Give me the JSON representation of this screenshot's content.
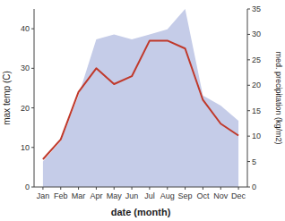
{
  "chart_data": {
    "type": "line",
    "categories": [
      "Jan",
      "Feb",
      "Mar",
      "Apr",
      "May",
      "Jun",
      "Jul",
      "Aug",
      "Sep",
      "Oct",
      "Nov",
      "Dec"
    ],
    "xlabel": "date (month)",
    "ylabel": "max temp (C)",
    "y2label": "med. precipitation (kg/m2)",
    "series": [
      {
        "type": "area",
        "axis": "y2",
        "color": "#c5cce8",
        "values": [
          5,
          9,
          18,
          29,
          30,
          29,
          30,
          31,
          35,
          18,
          16,
          13
        ]
      },
      {
        "type": "line",
        "color": "#c0392b",
        "values": [
          7,
          12,
          24,
          30,
          26,
          28,
          37,
          37,
          35,
          22,
          16,
          13
        ]
      }
    ],
    "ylim": [
      0,
      45
    ],
    "yticks": [
      0,
      10,
      20,
      30,
      40
    ],
    "y2lim": [
      0,
      35
    ],
    "y2ticks": [
      0,
      5,
      10,
      15,
      20,
      25,
      30,
      35
    ],
    "grid": false
  }
}
